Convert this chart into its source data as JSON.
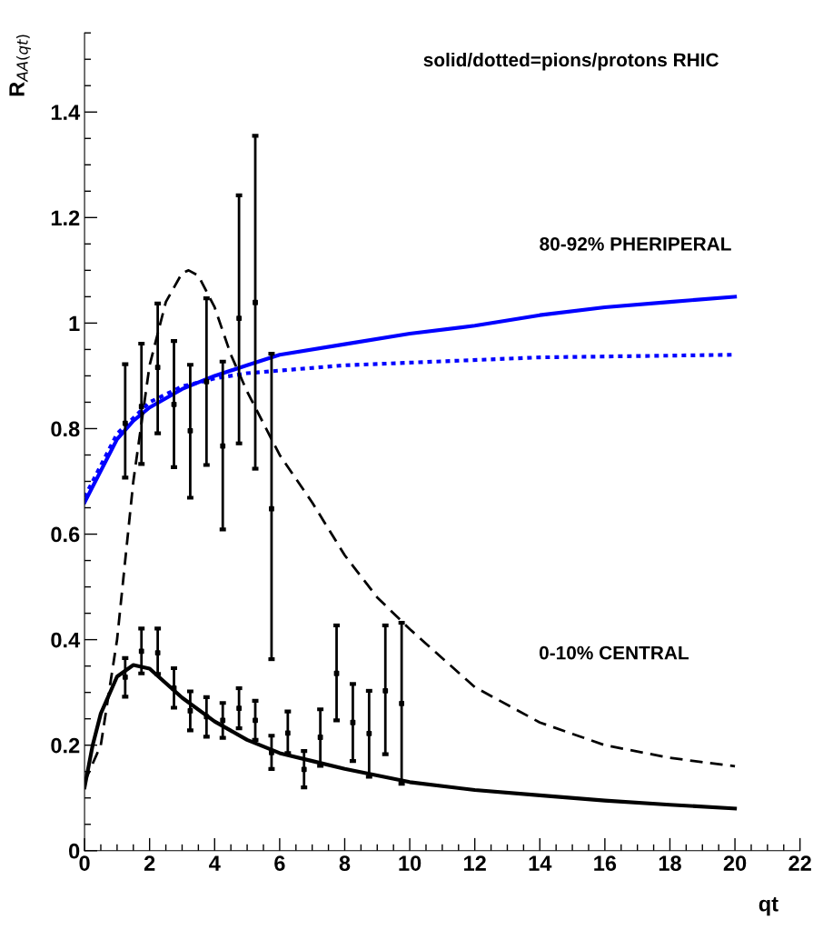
{
  "chart_data": {
    "type": "line",
    "xlabel": "qt",
    "ylabel": "R$_{AA(qt)}$",
    "xlim": [
      0,
      22
    ],
    "xticks": [
      0,
      2,
      4,
      6,
      8,
      10,
      12,
      14,
      16,
      18,
      20,
      22
    ],
    "ylim": [
      0,
      1.55
    ],
    "yticks": [
      0,
      0.2,
      0.4,
      0.6,
      0.8,
      1,
      1.2,
      1.4
    ],
    "grid": false,
    "legend": false,
    "annotations": [
      "solid/dotted=pions/protons RHIC",
      "80-92% PHERIPERAL",
      "0-10% CENTRAL"
    ],
    "series": [
      {
        "color": "#0000ff",
        "line_style": "solid",
        "x": [
          0,
          0.5,
          1,
          1.5,
          2,
          3,
          4,
          5,
          6,
          8,
          10,
          12,
          14,
          16,
          18,
          20
        ],
        "values": [
          0.66,
          0.72,
          0.78,
          0.815,
          0.84,
          0.875,
          0.9,
          0.92,
          0.94,
          0.96,
          0.98,
          0.995,
          1.015,
          1.03,
          1.04,
          1.05
        ]
      },
      {
        "color": "#0000ff",
        "line_style": "dotted",
        "x": [
          0,
          0.5,
          1,
          2,
          3,
          4,
          5,
          6,
          8,
          10,
          14,
          20
        ],
        "values": [
          0.67,
          0.73,
          0.79,
          0.85,
          0.88,
          0.895,
          0.905,
          0.91,
          0.92,
          0.925,
          0.935,
          0.94
        ]
      },
      {
        "color": "#000000",
        "line_style": "solid",
        "x": [
          0,
          0.25,
          0.5,
          1,
          1.5,
          2,
          3,
          4,
          5,
          6,
          7,
          8,
          10,
          12,
          14,
          16,
          18,
          20
        ],
        "values": [
          0.12,
          0.2,
          0.26,
          0.33,
          0.352,
          0.345,
          0.29,
          0.245,
          0.21,
          0.185,
          0.17,
          0.155,
          0.13,
          0.115,
          0.105,
          0.095,
          0.087,
          0.08
        ]
      },
      {
        "color": "#000000",
        "line_style": "dashed",
        "x": [
          0,
          0.5,
          1,
          1.5,
          2,
          2.5,
          3,
          3.2,
          3.5,
          4,
          4.5,
          5,
          6,
          7,
          8,
          9,
          10,
          12,
          14,
          16,
          18,
          20
        ],
        "values": [
          0.13,
          0.2,
          0.4,
          0.7,
          0.92,
          1.04,
          1.095,
          1.1,
          1.09,
          1.03,
          0.94,
          0.87,
          0.75,
          0.66,
          0.56,
          0.48,
          0.42,
          0.31,
          0.243,
          0.2,
          0.176,
          0.16
        ]
      },
      {
        "type": "scatter",
        "color": "#000000",
        "marker": "square",
        "x": [
          1.25,
          1.75,
          2.25,
          2.75,
          3.25,
          3.75,
          4.25,
          4.75,
          5.25,
          5.75
        ],
        "values": [
          0.81,
          0.842,
          0.916,
          0.846,
          0.796,
          0.889,
          0.767,
          1.009,
          1.039,
          0.648
        ],
        "errors": [
          [
            0.707,
            0.922
          ],
          [
            0.733,
            0.961
          ],
          [
            0.791,
            1.037
          ],
          [
            0.727,
            0.966
          ],
          [
            0.669,
            0.921
          ],
          [
            0.731,
            1.047
          ],
          [
            0.609,
            0.927
          ],
          [
            0.772,
            1.242
          ],
          [
            0.724,
            1.355
          ],
          [
            0.363,
            0.942
          ]
        ]
      },
      {
        "type": "scatter",
        "color": "#000000",
        "marker": "square",
        "x": [
          1.25,
          1.75,
          2.25,
          2.75,
          3.25,
          3.75,
          4.25,
          4.75,
          5.25,
          5.75,
          6.25,
          6.75,
          7.25,
          7.75,
          8.25,
          8.75,
          9.25,
          9.75
        ],
        "values": [
          0.329,
          0.378,
          0.375,
          0.308,
          0.265,
          0.254,
          0.247,
          0.27,
          0.247,
          0.186,
          0.223,
          0.154,
          0.215,
          0.336,
          0.243,
          0.222,
          0.303,
          0.279
        ],
        "errors": [
          [
            0.292,
            0.365
          ],
          [
            0.336,
            0.421
          ],
          [
            0.335,
            0.421
          ],
          [
            0.271,
            0.346
          ],
          [
            0.228,
            0.302
          ],
          [
            0.216,
            0.291
          ],
          [
            0.214,
            0.28
          ],
          [
            0.232,
            0.308
          ],
          [
            0.21,
            0.284
          ],
          [
            0.155,
            0.218
          ],
          [
            0.185,
            0.264
          ],
          [
            0.12,
            0.189
          ],
          [
            0.161,
            0.268
          ],
          [
            0.247,
            0.427
          ],
          [
            0.17,
            0.316
          ],
          [
            0.14,
            0.303
          ],
          [
            0.183,
            0.427
          ],
          [
            0.127,
            0.432
          ]
        ]
      }
    ]
  }
}
